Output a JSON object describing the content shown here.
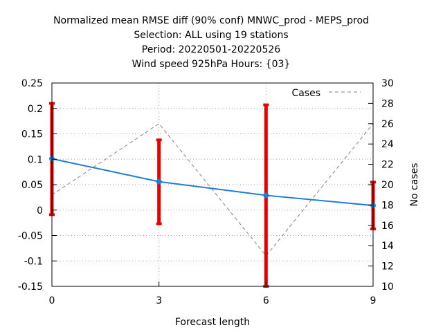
{
  "chart_data": {
    "type": "line",
    "title": [
      "Normalized mean RMSE diff (90% conf) MNWC_prod - MEPS_prod",
      "Selection: ALL using    19 stations",
      "Period: 20220501-20220526",
      "Wind speed 925hPa   Hours: {03}"
    ],
    "xlabel": "Forecast length",
    "ylabel": "",
    "y2label": "No cases",
    "xlim": [
      0,
      9
    ],
    "ylim": [
      -0.15,
      0.25
    ],
    "y2lim": [
      10,
      30
    ],
    "x_ticks": [
      "0",
      "3",
      "6",
      "9"
    ],
    "y_ticks": [
      "-0.15",
      "-0.1",
      "-0.05",
      "0",
      "0.05",
      "0.1",
      "0.15",
      "0.2",
      "0.25"
    ],
    "y2_ticks": [
      "10",
      "12",
      "14",
      "16",
      "18",
      "20",
      "22",
      "24",
      "26",
      "28",
      "30"
    ],
    "grid": true,
    "legend_position": "top-right",
    "x": [
      0,
      3,
      6,
      9
    ],
    "series": [
      {
        "values": [
          0.101,
          0.056,
          0.029,
          0.009
        ],
        "error_low": [
          -0.009,
          -0.027,
          -0.15,
          -0.037
        ],
        "error_high": [
          0.21,
          0.138,
          0.207,
          0.055
        ],
        "color": "#1e7bd6",
        "error_color": "#e80000",
        "axis": "left"
      },
      {
        "name": "Cases",
        "values": [
          19,
          26,
          13,
          26
        ],
        "color": "#808080",
        "dashed": true,
        "axis": "right"
      }
    ]
  }
}
